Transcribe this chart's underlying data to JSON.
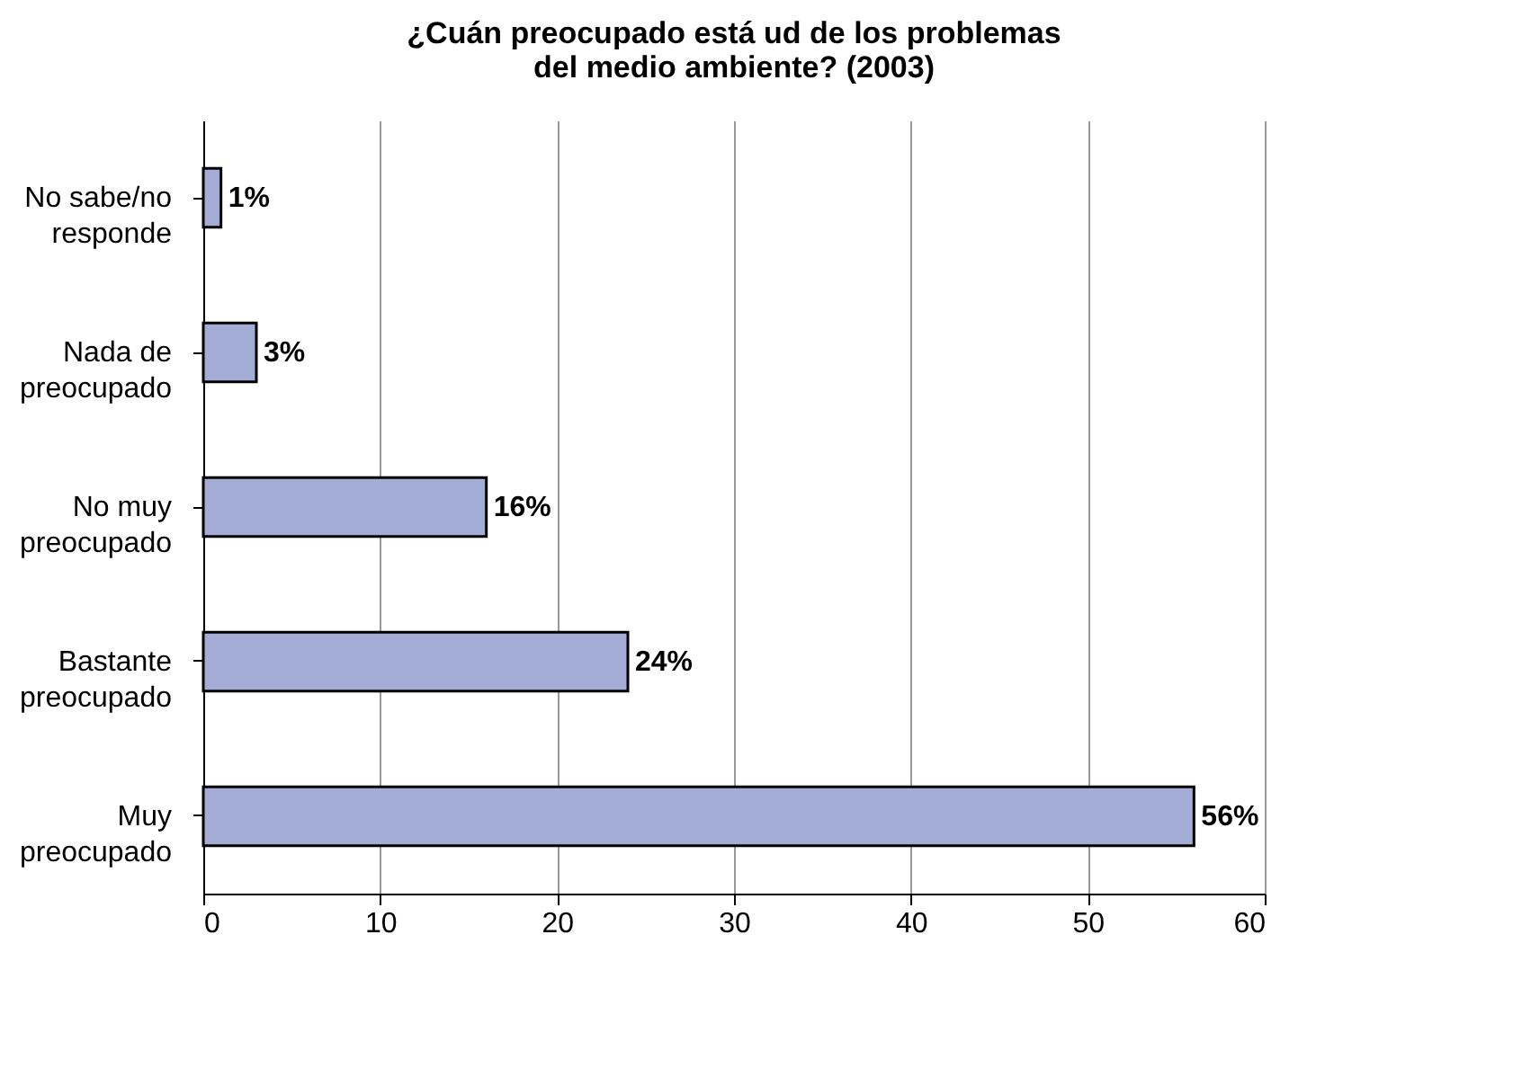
{
  "chart_data": {
    "type": "bar",
    "orientation": "horizontal",
    "title": "¿Cuán preocupado está ud de los problemas del medio ambiente? (2003)",
    "categories": [
      "No sabe/no responde",
      "Nada de preocupado",
      "No muy preocupado",
      "Bastante preocupado",
      "Muy preocupado"
    ],
    "values": [
      1,
      3,
      16,
      24,
      56
    ],
    "value_labels": [
      "1%",
      "3%",
      "16%",
      "24%",
      "56%"
    ],
    "color": "#a3acd4",
    "xlim": [
      0,
      60
    ],
    "xticks": [
      0,
      10,
      20,
      30,
      40,
      50,
      60
    ],
    "grid": "x"
  }
}
